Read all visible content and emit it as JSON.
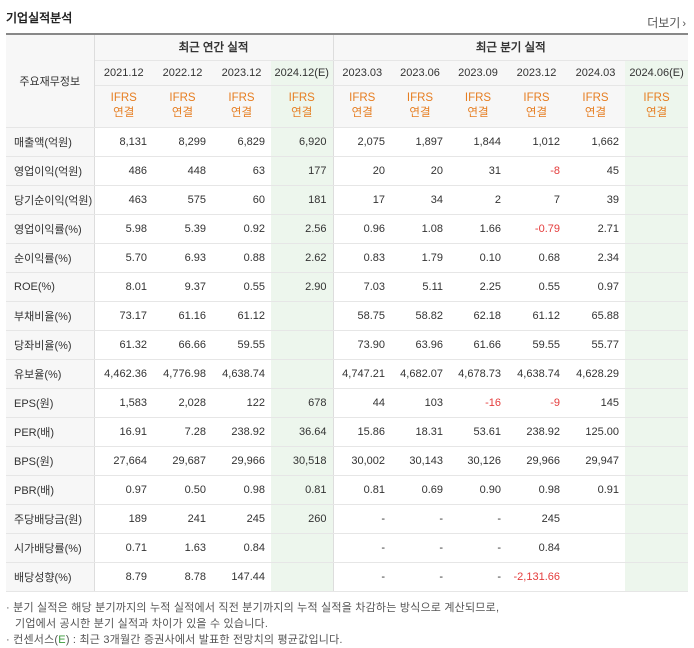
{
  "header": {
    "title": "기업실적분석",
    "more_label": "더보기",
    "more_icon": "chevron-right-icon"
  },
  "table": {
    "row_header_label": "주요재무정보",
    "group_annual": "최근 연간 실적",
    "group_quarter": "최근 분기 실적",
    "periods": [
      "2021.12",
      "2022.12",
      "2023.12",
      "2024.12(E)",
      "2023.03",
      "2023.06",
      "2023.09",
      "2023.12",
      "2024.03",
      "2024.06(E)"
    ],
    "ifrs_line1": "IFRS",
    "ifrs_line2": "연결",
    "rows": [
      {
        "label": "매출액(억원)",
        "values": [
          "8,131",
          "8,299",
          "6,829",
          "6,920",
          "2,075",
          "1,897",
          "1,844",
          "1,012",
          "1,662",
          ""
        ]
      },
      {
        "label": "영업이익(억원)",
        "values": [
          "486",
          "448",
          "63",
          "177",
          "20",
          "20",
          "31",
          "-8",
          "45",
          ""
        ]
      },
      {
        "label": "당기순이익(억원)",
        "values": [
          "463",
          "575",
          "60",
          "181",
          "17",
          "34",
          "2",
          "7",
          "39",
          ""
        ]
      },
      {
        "label": "영업이익률(%)",
        "values": [
          "5.98",
          "5.39",
          "0.92",
          "2.56",
          "0.96",
          "1.08",
          "1.66",
          "-0.79",
          "2.71",
          ""
        ]
      },
      {
        "label": "순이익률(%)",
        "values": [
          "5.70",
          "6.93",
          "0.88",
          "2.62",
          "0.83",
          "1.79",
          "0.10",
          "0.68",
          "2.34",
          ""
        ]
      },
      {
        "label": "ROE(%)",
        "values": [
          "8.01",
          "9.37",
          "0.55",
          "2.90",
          "7.03",
          "5.11",
          "2.25",
          "0.55",
          "0.97",
          ""
        ]
      },
      {
        "label": "부채비율(%)",
        "values": [
          "73.17",
          "61.16",
          "61.12",
          "",
          "58.75",
          "58.82",
          "62.18",
          "61.12",
          "65.88",
          ""
        ]
      },
      {
        "label": "당좌비율(%)",
        "values": [
          "61.32",
          "66.66",
          "59.55",
          "",
          "73.90",
          "63.96",
          "61.66",
          "59.55",
          "55.77",
          ""
        ]
      },
      {
        "label": "유보율(%)",
        "values": [
          "4,462.36",
          "4,776.98",
          "4,638.74",
          "",
          "4,747.21",
          "4,682.07",
          "4,678.73",
          "4,638.74",
          "4,628.29",
          ""
        ]
      },
      {
        "label": "EPS(원)",
        "values": [
          "1,583",
          "2,028",
          "122",
          "678",
          "44",
          "103",
          "-16",
          "-9",
          "145",
          ""
        ]
      },
      {
        "label": "PER(배)",
        "values": [
          "16.91",
          "7.28",
          "238.92",
          "36.64",
          "15.86",
          "18.31",
          "53.61",
          "238.92",
          "125.00",
          ""
        ]
      },
      {
        "label": "BPS(원)",
        "values": [
          "27,664",
          "29,687",
          "29,966",
          "30,518",
          "30,002",
          "30,143",
          "30,126",
          "29,966",
          "29,947",
          ""
        ]
      },
      {
        "label": "PBR(배)",
        "values": [
          "0.97",
          "0.50",
          "0.98",
          "0.81",
          "0.81",
          "0.69",
          "0.90",
          "0.98",
          "0.91",
          ""
        ]
      },
      {
        "label": "주당배당금(원)",
        "values": [
          "189",
          "241",
          "245",
          "260",
          "-",
          "-",
          "-",
          "245",
          "",
          ""
        ]
      },
      {
        "label": "시가배당률(%)",
        "values": [
          "0.71",
          "1.63",
          "0.84",
          "",
          "-",
          "-",
          "-",
          "0.84",
          "",
          ""
        ]
      },
      {
        "label": "배당성향(%)",
        "values": [
          "8.79",
          "8.78",
          "147.44",
          "",
          "-",
          "-",
          "-",
          "-2,131.66",
          "",
          ""
        ]
      }
    ]
  },
  "notes": {
    "line1": "· 분기 실적은 해당 분기까지의 누적 실적에서 직전 분기까지의 누적 실적을 차감하는 방식으로 계산되므로,",
    "line2": "기업에서 공시한 분기 실적과 차이가 있을 수 있습니다.",
    "line3_prefix": "· 컨센서스(",
    "line3_e": "E",
    "line3_suffix": ") : 최근 3개월간 증권사에서 발표한 전망치의 평균값입니다."
  },
  "colors": {
    "ifrs": "#e67e22",
    "negative": "#e43c3c",
    "estimate_bg": "#edf6ed"
  }
}
